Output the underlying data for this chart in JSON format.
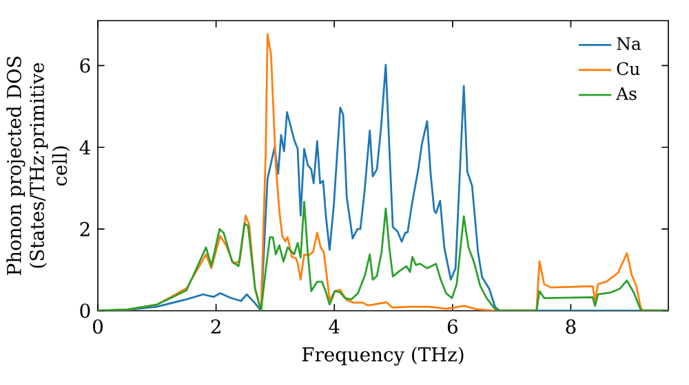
{
  "chart_data": {
    "type": "line",
    "xlabel": "Frequency (THz)",
    "ylabel": "Phonon projected DOS (States/THz·primitive cell)",
    "xlim": [
      0,
      9.65
    ],
    "ylim": [
      0,
      7.1
    ],
    "xticks": [
      0,
      2,
      4,
      6,
      8
    ],
    "yticks": [
      0,
      2,
      4,
      6
    ],
    "legend": "top right",
    "grid": false,
    "marker": "none",
    "line_style": "solid",
    "series": [
      {
        "name": "Na",
        "color": "#1f77b4",
        "x": [
          0,
          0.5,
          1.0,
          1.5,
          1.78,
          1.96,
          2.07,
          2.24,
          2.42,
          2.52,
          2.65,
          2.76,
          2.87,
          2.99,
          3.05,
          3.1,
          3.15,
          3.2,
          3.32,
          3.38,
          3.43,
          3.49,
          3.55,
          3.61,
          3.65,
          3.71,
          3.76,
          3.81,
          3.86,
          3.92,
          3.99,
          4.1,
          4.15,
          4.21,
          4.31,
          4.39,
          4.44,
          4.51,
          4.6,
          4.65,
          4.72,
          4.79,
          4.87,
          4.93,
          4.99,
          5.07,
          5.14,
          5.2,
          5.24,
          5.32,
          5.42,
          5.48,
          5.57,
          5.63,
          5.69,
          5.72,
          5.79,
          5.86,
          5.97,
          6.05,
          6.19,
          6.25,
          6.33,
          6.43,
          6.5,
          6.62,
          6.72,
          6.8,
          9.65
        ],
        "values": [
          0,
          0.02,
          0.1,
          0.28,
          0.4,
          0.34,
          0.43,
          0.32,
          0.24,
          0.4,
          0.2,
          0,
          3.23,
          4.0,
          3.35,
          4.3,
          3.9,
          4.86,
          4.19,
          3.96,
          2.33,
          3.96,
          3.57,
          3.46,
          3.12,
          4.15,
          3.12,
          3.18,
          2.28,
          1.49,
          2.56,
          4.97,
          4.8,
          2.78,
          1.77,
          2.0,
          2.0,
          2.9,
          4.41,
          3.29,
          3.46,
          4.47,
          6.02,
          4.02,
          2.05,
          1.94,
          1.69,
          1.91,
          1.92,
          2.67,
          3.46,
          4.07,
          4.64,
          3.34,
          2.45,
          2.39,
          2.69,
          1.55,
          0.76,
          1.04,
          5.5,
          3.4,
          3.06,
          1.44,
          0.82,
          0.54,
          0.09,
          0,
          0
        ]
      },
      {
        "name": "Cu",
        "color": "#ff7f0e",
        "x": [
          0,
          0.5,
          1.0,
          1.5,
          1.83,
          1.92,
          2.07,
          2.17,
          2.29,
          2.4,
          2.5,
          2.56,
          2.66,
          2.76,
          2.84,
          2.87,
          2.93,
          3.01,
          3.07,
          3.12,
          3.17,
          3.21,
          3.28,
          3.35,
          3.38,
          3.43,
          3.49,
          3.56,
          3.64,
          3.71,
          3.77,
          3.82,
          3.88,
          3.92,
          4.01,
          4.1,
          4.21,
          4.32,
          4.48,
          4.57,
          4.88,
          4.98,
          5.3,
          5.6,
          5.9,
          6.2,
          6.4,
          6.7,
          7.42,
          7.47,
          7.55,
          7.66,
          8.37,
          8.41,
          8.46,
          8.6,
          8.8,
          8.95,
          9.03,
          9.11,
          9.18,
          9.22,
          9.65
        ],
        "values": [
          0,
          0.03,
          0.15,
          0.55,
          1.38,
          1.04,
          1.83,
          1.6,
          1.16,
          1.21,
          2.33,
          2.11,
          0.54,
          0,
          3.9,
          6.77,
          6.26,
          3.57,
          2.45,
          1.83,
          1.7,
          1.8,
          1.32,
          1.28,
          1.17,
          0.76,
          1.38,
          1.35,
          1.44,
          1.91,
          1.55,
          1.44,
          0.76,
          0.26,
          0.48,
          0.51,
          0.26,
          0.2,
          0.2,
          0.13,
          0.21,
          0.08,
          0.1,
          0.1,
          0.05,
          0.12,
          0.04,
          0,
          0,
          1.21,
          0.65,
          0.57,
          0.6,
          0.26,
          0.65,
          0.71,
          0.93,
          1.41,
          0.88,
          0.6,
          0.09,
          0,
          0
        ]
      },
      {
        "name": "As",
        "color": "#2ca02c",
        "x": [
          0,
          0.5,
          1.0,
          1.5,
          1.83,
          1.92,
          2.06,
          2.13,
          2.27,
          2.38,
          2.48,
          2.54,
          2.66,
          2.76,
          2.84,
          2.91,
          2.96,
          3.01,
          3.07,
          3.14,
          3.21,
          3.32,
          3.38,
          3.43,
          3.49,
          3.55,
          3.61,
          3.71,
          3.79,
          3.86,
          3.92,
          4.01,
          4.1,
          4.18,
          4.29,
          4.4,
          4.52,
          4.6,
          4.65,
          4.72,
          4.8,
          4.87,
          4.93,
          4.99,
          5.1,
          5.22,
          5.28,
          5.32,
          5.38,
          5.45,
          5.57,
          5.72,
          5.8,
          5.89,
          5.99,
          6.07,
          6.19,
          6.27,
          6.36,
          6.47,
          6.58,
          6.72,
          6.8,
          7.42,
          7.47,
          7.55,
          8.37,
          8.41,
          8.46,
          8.68,
          8.83,
          8.95,
          9.07,
          9.18,
          9.22,
          9.65
        ],
        "values": [
          0,
          0.03,
          0.15,
          0.5,
          1.55,
          1.1,
          2.0,
          1.9,
          1.21,
          1.09,
          2.13,
          2.08,
          0.54,
          0,
          0.99,
          1.8,
          1.8,
          1.38,
          1.6,
          1.2,
          1.55,
          1.38,
          1.66,
          1.3,
          2.67,
          1.43,
          0.48,
          0.71,
          0.71,
          0.45,
          0.15,
          0.48,
          0.45,
          0.31,
          0.28,
          0.43,
          0.88,
          1.38,
          0.76,
          0.85,
          1.44,
          2.5,
          1.55,
          0.84,
          0.97,
          1.09,
          0.95,
          1.32,
          1.12,
          1.15,
          1.04,
          1.15,
          0.76,
          0.43,
          0.31,
          0.65,
          2.31,
          1.55,
          1.2,
          0.6,
          0.3,
          0.04,
          0,
          0,
          0.48,
          0.31,
          0.33,
          0.12,
          0.4,
          0.45,
          0.54,
          0.74,
          0.43,
          0.03,
          0,
          0
        ]
      }
    ]
  }
}
